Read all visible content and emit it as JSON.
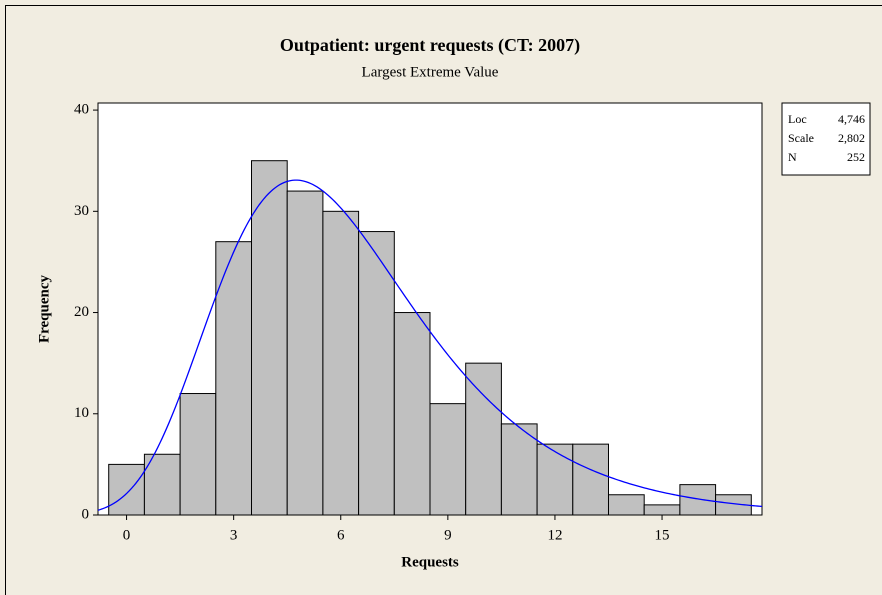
{
  "chart_data": {
    "type": "histogram",
    "title": "Outpatient: urgent requests (CT: 2007)",
    "subtitle": "Largest Extreme Value",
    "x_label": "Requests",
    "y_label": "Frequency",
    "bins": [
      -0.5,
      0.5,
      1.5,
      2.5,
      3.5,
      4.5,
      5.5,
      6.5,
      7.5,
      8.5,
      9.5,
      10.5,
      11.5,
      12.5,
      13.5,
      14.5,
      15.5,
      16.5,
      17.5
    ],
    "values": [
      5,
      6,
      12,
      27,
      35,
      32,
      30,
      28,
      20,
      11,
      15,
      9,
      7,
      7,
      2,
      1,
      3,
      2
    ],
    "color": "#c0c0c0",
    "xlim": [
      -0.8,
      17.8
    ],
    "xticks": [
      0,
      3,
      6,
      9,
      12,
      15
    ],
    "ylim": [
      0,
      40.7
    ],
    "yticks": [
      0,
      10,
      20,
      30,
      40
    ],
    "fit": [
      {
        "name": "Loc",
        "value": 4.746,
        "label": "4,746"
      },
      {
        "name": "Scale",
        "value": 2.802,
        "label": "2,802"
      },
      {
        "name": "N",
        "value": 252
      }
    ],
    "fit_color": "#0000ff"
  }
}
